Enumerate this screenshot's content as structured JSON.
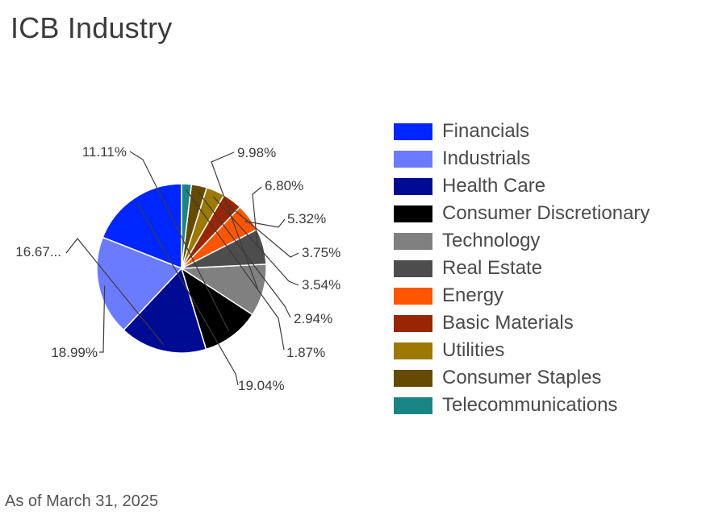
{
  "title": "ICB Industry",
  "footnote": "As of March 31, 2025",
  "chart_data": {
    "type": "pie",
    "start": "12 o'clock",
    "direction": "counter-clockwise",
    "slices": [
      {
        "name": "Financials",
        "value": 19.04,
        "label": "19.04%",
        "color": "#0026ff"
      },
      {
        "name": "Industrials",
        "value": 18.99,
        "label": "18.99%",
        "color": "#6b7bff"
      },
      {
        "name": "Health Care",
        "value": 16.67,
        "label": "16.67...",
        "color": "#000b94"
      },
      {
        "name": "Consumer Discretionary",
        "value": 11.11,
        "label": "11.11%",
        "color": "#000000"
      },
      {
        "name": "Technology",
        "value": 9.98,
        "label": "9.98%",
        "color": "#808080"
      },
      {
        "name": "Real Estate",
        "value": 6.8,
        "label": "6.80%",
        "color": "#4d4d4d"
      },
      {
        "name": "Energy",
        "value": 5.32,
        "label": "5.32%",
        "color": "#ff5500"
      },
      {
        "name": "Basic Materials",
        "value": 3.75,
        "label": "3.75%",
        "color": "#992600"
      },
      {
        "name": "Utilities",
        "value": 3.54,
        "label": "3.54%",
        "color": "#9c7900"
      },
      {
        "name": "Consumer Staples",
        "value": 2.94,
        "label": "2.94%",
        "color": "#664a00"
      },
      {
        "name": "Telecommunications",
        "value": 1.87,
        "label": "1.87%",
        "color": "#1a8585"
      }
    ],
    "legend": {
      "position": "right",
      "order": [
        "Financials",
        "Industrials",
        "Health Care",
        "Consumer Discretionary",
        "Technology",
        "Real Estate",
        "Energy",
        "Basic Materials",
        "Utilities",
        "Consumer Staples",
        "Telecommunications"
      ]
    }
  }
}
